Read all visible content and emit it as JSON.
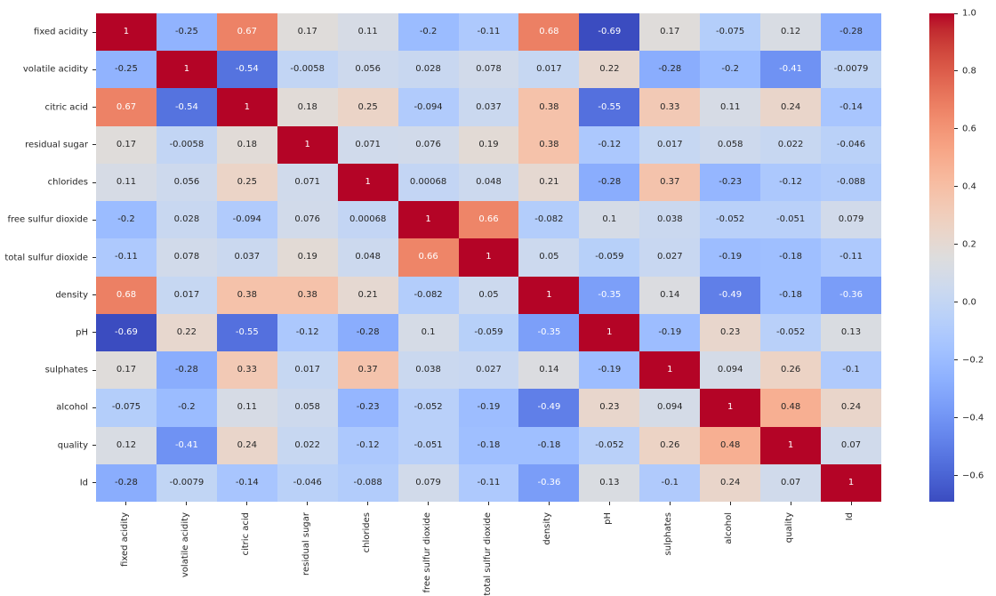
{
  "figure": {
    "background": "#ffffff",
    "description": "Correlation matrix heatmap of wine quality dataset features"
  },
  "chart_data": {
    "type": "heatmap",
    "title": "",
    "xlabel": "",
    "ylabel": "",
    "labels": [
      "fixed acidity",
      "volatile acidity",
      "citric acid",
      "residual sugar",
      "chlorides",
      "free sulfur dioxide",
      "total sulfur dioxide",
      "density",
      "pH",
      "sulphates",
      "alcohol",
      "quality",
      "Id"
    ],
    "cell_text": [
      [
        "1",
        "-0.25",
        "0.67",
        "0.17",
        "0.11",
        "-0.2",
        "-0.11",
        "0.68",
        "-0.69",
        "0.17",
        "-0.075",
        "0.12",
        "-0.28"
      ],
      [
        "-0.25",
        "1",
        "-0.54",
        "-0.0058",
        "0.056",
        "0.028",
        "0.078",
        "0.017",
        "0.22",
        "-0.28",
        "-0.2",
        "-0.41",
        "-0.0079"
      ],
      [
        "0.67",
        "-0.54",
        "1",
        "0.18",
        "0.25",
        "-0.094",
        "0.037",
        "0.38",
        "-0.55",
        "0.33",
        "0.11",
        "0.24",
        "-0.14"
      ],
      [
        "0.17",
        "-0.0058",
        "0.18",
        "1",
        "0.071",
        "0.076",
        "0.19",
        "0.38",
        "-0.12",
        "0.017",
        "0.058",
        "0.022",
        "-0.046"
      ],
      [
        "0.11",
        "0.056",
        "0.25",
        "0.071",
        "1",
        "0.00068",
        "0.048",
        "0.21",
        "-0.28",
        "0.37",
        "-0.23",
        "-0.12",
        "-0.088"
      ],
      [
        "-0.2",
        "0.028",
        "-0.094",
        "0.076",
        "0.00068",
        "1",
        "0.66",
        "-0.082",
        "0.1",
        "0.038",
        "-0.052",
        "-0.051",
        "0.079"
      ],
      [
        "-0.11",
        "0.078",
        "0.037",
        "0.19",
        "0.048",
        "0.66",
        "1",
        "0.05",
        "-0.059",
        "0.027",
        "-0.19",
        "-0.18",
        "-0.11"
      ],
      [
        "0.68",
        "0.017",
        "0.38",
        "0.38",
        "0.21",
        "-0.082",
        "0.05",
        "1",
        "-0.35",
        "0.14",
        "-0.49",
        "-0.18",
        "-0.36"
      ],
      [
        "-0.69",
        "0.22",
        "-0.55",
        "-0.12",
        "-0.28",
        "0.1",
        "-0.059",
        "-0.35",
        "1",
        "-0.19",
        "0.23",
        "-0.052",
        "0.13"
      ],
      [
        "0.17",
        "-0.28",
        "0.33",
        "0.017",
        "0.37",
        "0.038",
        "0.027",
        "0.14",
        "-0.19",
        "1",
        "0.094",
        "0.26",
        "-0.1"
      ],
      [
        "-0.075",
        "-0.2",
        "0.11",
        "0.058",
        "-0.23",
        "-0.052",
        "-0.19",
        "-0.49",
        "0.23",
        "0.094",
        "1",
        "0.48",
        "0.24"
      ],
      [
        "0.12",
        "-0.41",
        "0.24",
        "0.022",
        "-0.12",
        "-0.051",
        "-0.18",
        "-0.18",
        "-0.052",
        "0.26",
        "0.48",
        "1",
        "0.07"
      ],
      [
        "-0.28",
        "-0.0079",
        "-0.14",
        "-0.046",
        "-0.088",
        "0.079",
        "-0.11",
        "-0.36",
        "0.13",
        "-0.1",
        "0.24",
        "0.07",
        "1"
      ]
    ],
    "vmin": -0.69,
    "vmax": 1.0,
    "colormap": "coolwarm",
    "grid": false,
    "legend_position": "right-colorbar",
    "colorbar": {
      "tick_labels": [
        "1.0",
        "0.8",
        "0.6",
        "0.4",
        "0.2",
        "0.0",
        "−0.2",
        "−0.4",
        "−0.6"
      ],
      "tick_values": [
        1.0,
        0.8,
        0.6,
        0.4,
        0.2,
        0.0,
        -0.2,
        -0.4,
        -0.6
      ]
    },
    "annotation_text_colors": {
      "on_light": "#262626",
      "on_dark": "#ffffff"
    },
    "colormap_key_colors": {
      "low": "#3b4cc0",
      "mid": "#dddddd",
      "high": "#b40426"
    }
  }
}
